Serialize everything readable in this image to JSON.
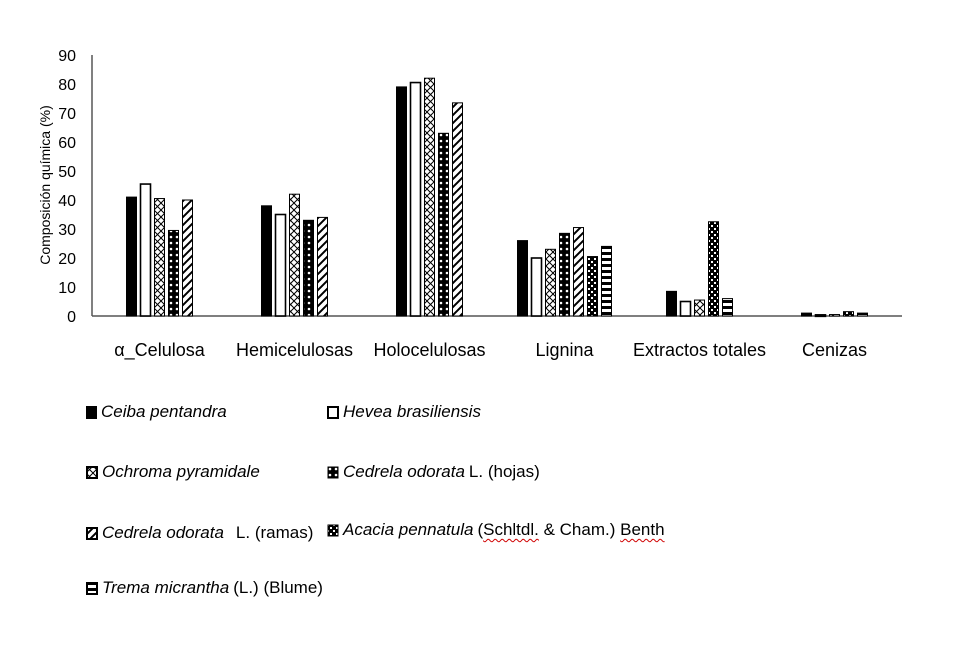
{
  "chart_data": {
    "type": "bar",
    "title": "",
    "xlabel": "",
    "ylabel": "Composición química (%)",
    "ylim": [
      0,
      90
    ],
    "yticks": [
      0,
      10,
      20,
      30,
      40,
      50,
      60,
      70,
      80,
      90
    ],
    "grid": false,
    "legend_position": "bottom",
    "categories": [
      "α_Celulosa",
      "Hemicelulosas",
      "Holocelulosas",
      "Lignina",
      "Extractos totales",
      "Cenizas"
    ],
    "series": [
      {
        "name": "Ceiba pentandra",
        "authority": "",
        "pattern": "solid",
        "values": [
          41,
          38,
          79,
          26,
          8.5,
          1.0
        ]
      },
      {
        "name": "Hevea brasiliensis",
        "authority": "",
        "pattern": "hollow",
        "values": [
          45.5,
          35,
          80.5,
          20,
          5,
          0.4
        ]
      },
      {
        "name": "Ochroma pyramidale",
        "authority": "",
        "pattern": "crosshatch",
        "values": [
          40.5,
          42,
          82,
          23,
          5.5,
          0.5
        ]
      },
      {
        "name": "Cedrela odorata",
        "authority": "L. (hojas)",
        "pattern": "dots",
        "values": [
          29.5,
          33,
          63,
          28.5,
          null,
          null
        ]
      },
      {
        "name": "Cedrela odorata",
        "authority": "L. (ramas)",
        "pattern": "zigzag",
        "values": [
          40,
          34,
          73.5,
          30.5,
          null,
          null
        ]
      },
      {
        "name": "Acacia pennatula",
        "authority_pre": "(",
        "authority_mid1": "Schltdl.",
        "authority_mid2": " & Cham.) ",
        "authority_mid3": "Benth",
        "pattern": "checker",
        "values": [
          null,
          null,
          null,
          20.5,
          32.5,
          1.5
        ]
      },
      {
        "name": "Trema micrantha",
        "authority": "(L.) (Blume)",
        "pattern": "hstripes",
        "values": [
          null,
          null,
          null,
          24,
          6,
          1.0
        ]
      }
    ]
  }
}
